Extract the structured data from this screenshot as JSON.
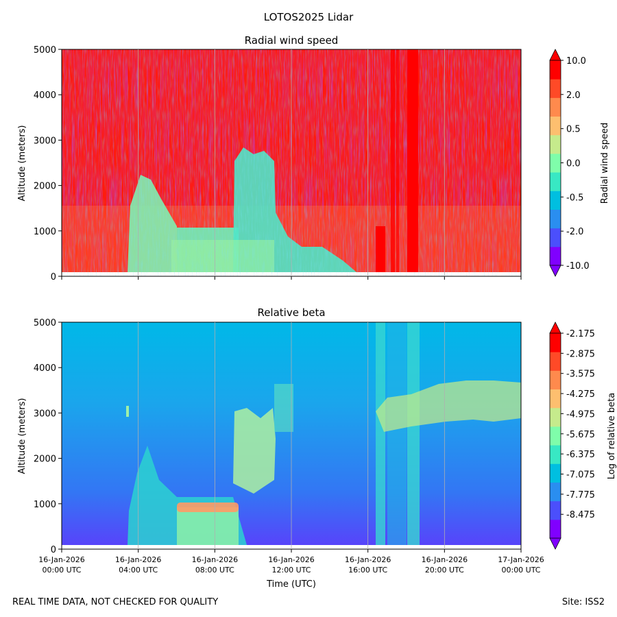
{
  "figure": {
    "suptitle": "LOTOS2025 Lidar",
    "footer_left": "REAL TIME DATA, NOT CHECKED FOR QUALITY",
    "footer_right": "Site: ISS2"
  },
  "chart_data": [
    {
      "type": "heatmap",
      "title": "Radial wind speed",
      "ylabel": "Altitude (meters)",
      "xlabel": "",
      "ylim": [
        0,
        5000
      ],
      "yticks": [
        "0",
        "1000",
        "2000",
        "3000",
        "4000",
        "5000"
      ],
      "xlim": [
        "16-Jan-2026 00:00 UTC",
        "17-Jan-2026 00:00 UTC"
      ],
      "grid": "vertical lines at x ticks",
      "colormap": "rainbow",
      "colorbar": {
        "label": "Radial wind speed",
        "tick_labels": [
          "10.0",
          "2.0",
          "0.5",
          "0.0",
          "-0.5",
          "-2.0",
          "-10.0"
        ],
        "extend": "both",
        "colors": [
          "#8000ff",
          "#4b4ffc",
          "#2a8ef0",
          "#00bfe0",
          "#38e8c4",
          "#7ffdaa",
          "#c6eb8c",
          "#fdbf6f",
          "#ff8a4d",
          "#ff4a27",
          "#ff0000"
        ]
      },
      "regions": [
        {
          "x_hours": [
            0,
            24
          ],
          "alt_m": [
            0,
            5000
          ],
          "value": "mixed, mostly 10.0 (red) with noise"
        },
        {
          "x_hours": [
            3.4,
            6.5
          ],
          "alt_m": [
            0,
            2100
          ],
          "value": "-0.5 to 0.5"
        },
        {
          "x_hours": [
            6.0,
            9.0
          ],
          "alt_m": [
            0,
            1050
          ],
          "value": "-0.5 to 0.5"
        },
        {
          "x_hours": [
            9.0,
            11.0
          ],
          "alt_m": [
            0,
            2900
          ],
          "value": "-0.5 to 0.5"
        },
        {
          "x_hours": [
            16.5,
            18.5
          ],
          "alt_m": [
            0,
            5000
          ],
          "value": "10.0"
        }
      ]
    },
    {
      "type": "heatmap",
      "title": "Relative beta",
      "ylabel": "Altitude (meters)",
      "xlabel": "Time (UTC)",
      "ylim": [
        0,
        5000
      ],
      "yticks": [
        "0",
        "1000",
        "2000",
        "3000",
        "4000",
        "5000"
      ],
      "xtick_labels": [
        {
          "date": "16-Jan-2026",
          "time": "00:00 UTC"
        },
        {
          "date": "16-Jan-2026",
          "time": "04:00 UTC"
        },
        {
          "date": "16-Jan-2026",
          "time": "08:00 UTC"
        },
        {
          "date": "16-Jan-2026",
          "time": "12:00 UTC"
        },
        {
          "date": "16-Jan-2026",
          "time": "16:00 UTC"
        },
        {
          "date": "16-Jan-2026",
          "time": "20:00 UTC"
        },
        {
          "date": "17-Jan-2026",
          "time": "00:00 UTC"
        }
      ],
      "grid": "vertical lines at x ticks",
      "colormap": "rainbow",
      "colorbar": {
        "label": "Log of relative beta",
        "tick_labels": [
          "-2.175",
          "-2.875",
          "-3.575",
          "-4.275",
          "-4.975",
          "-5.675",
          "-6.375",
          "-7.075",
          "-7.775",
          "-8.475"
        ],
        "extend": "both",
        "colors": [
          "#8000ff",
          "#4b4ffc",
          "#2a8ef0",
          "#00bfe0",
          "#38e8c4",
          "#7ffdaa",
          "#c6eb8c",
          "#fdbf6f",
          "#ff8a4d",
          "#ff4a27",
          "#ff0000"
        ]
      },
      "regions": [
        {
          "x_hours": [
            0,
            24
          ],
          "alt_m": [
            0,
            5000
          ],
          "value": "about -7.3 (background)"
        },
        {
          "x_hours": [
            3.4,
            9.5
          ],
          "alt_m": [
            0,
            1100
          ],
          "value": "about -6.4"
        },
        {
          "x_hours": [
            6.0,
            9.2
          ],
          "alt_m": [
            850,
            1000
          ],
          "value": "about -4.0 (aerosol layer)"
        },
        {
          "x_hours": [
            9.0,
            11.0
          ],
          "alt_m": [
            1300,
            2900
          ],
          "value": "about -5.5"
        },
        {
          "x_hours": [
            16.3,
            20.0
          ],
          "alt_m": [
            0,
            5000
          ],
          "value": "about -6.8"
        },
        {
          "x_hours": [
            17.0,
            24.0
          ],
          "alt_m": [
            2800,
            3700
          ],
          "value": "about -5.3 (cloud)"
        }
      ]
    }
  ]
}
